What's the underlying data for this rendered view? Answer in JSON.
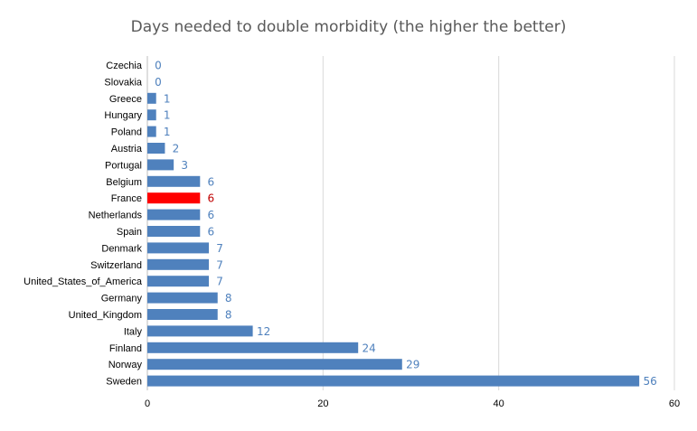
{
  "chart_data": {
    "type": "bar",
    "orientation": "horizontal",
    "title": "Days needed to double morbidity (the higher the better)",
    "xlabel": "",
    "ylabel": "",
    "categories": [
      "Czechia",
      "Slovakia",
      "Greece",
      "Hungary",
      "Poland",
      "Austria",
      "Portugal",
      "Belgium",
      "France",
      "Netherlands",
      "Spain",
      "Denmark",
      "Switzerland",
      "United_States_of_America",
      "Germany",
      "United_Kingdom",
      "Italy",
      "Finland",
      "Norway",
      "Sweden"
    ],
    "values": [
      0,
      0,
      1,
      1,
      1,
      2,
      3,
      6,
      6,
      6,
      6,
      7,
      7,
      7,
      8,
      8,
      12,
      24,
      29,
      56
    ],
    "xlim": [
      0,
      60
    ],
    "xticks": [
      0,
      20,
      40,
      60
    ],
    "grid": true,
    "legend": "none",
    "colors": {
      "bar": "#4f81bd",
      "highlight_bar": "#ff0000",
      "value_label": "#4f81bd",
      "highlight_label": "#c00000",
      "highlight_category": "France"
    }
  }
}
